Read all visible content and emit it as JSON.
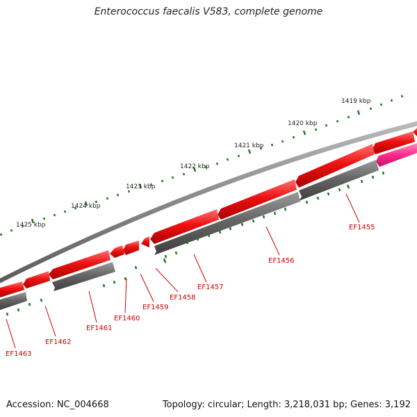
{
  "title": "Enterococcus faecalis V583, complete genome",
  "footer": {
    "accession": "Accession: NC_004668",
    "summary": "Topology: circular; Length: 3,218,031 bp; Genes: 3,192"
  },
  "colors": {
    "forward_gene": "#ee1111",
    "reverse_gene": "#666666",
    "rna_gene": "#ff2a8a",
    "backbone": "#8a8a8a",
    "ticks": "#1a7a1a",
    "label_text": "#cc0000"
  },
  "ruler": [
    "1419 kbp",
    "1420 kbp",
    "1421 kbp",
    "1422 kbp",
    "1423 kbp",
    "1424 kbp",
    "1425 kbp"
  ],
  "genes": [
    "EF1455",
    "EF1456",
    "EF1457",
    "EF1458",
    "EF1459",
    "EF1460",
    "EF1461",
    "EF1462",
    "EF1463"
  ]
}
